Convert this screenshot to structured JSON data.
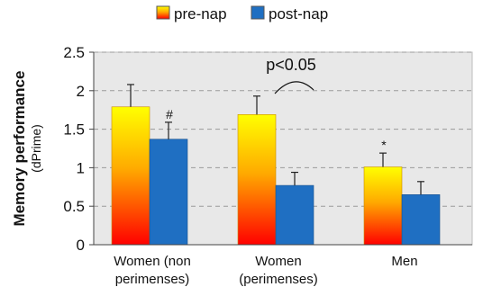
{
  "chart_data": {
    "type": "bar",
    "title": "",
    "ylabel": "Memory performance",
    "ylabel_sub": "(dPrime)",
    "xlabel": "",
    "ylim": [
      0,
      2.5
    ],
    "yticks": [
      "0",
      "0.5",
      "1",
      "1.5",
      "2",
      "2.5"
    ],
    "grid": true,
    "legend_position": "top-center",
    "categories": [
      [
        "Women (non",
        "perimenses)"
      ],
      [
        "Women",
        "(perimenses)"
      ],
      [
        "Men"
      ]
    ],
    "series": [
      {
        "name": "pre-nap",
        "values": [
          1.79,
          1.69,
          1.01
        ],
        "error": [
          0.29,
          0.24,
          0.18
        ],
        "colors": {
          "top": "#ffff00",
          "mid": "#ff9900",
          "bottom": "#ff0000"
        }
      },
      {
        "name": "post-nap",
        "values": [
          1.37,
          0.77,
          0.65
        ],
        "error": [
          0.22,
          0.17,
          0.17
        ],
        "colors": {
          "fill": "#1f6fc2"
        }
      }
    ],
    "annotations": {
      "significance_text": "p<0.05",
      "markers": [
        {
          "text": "#",
          "category": 0,
          "series": 1
        },
        {
          "text": "*",
          "category": 2,
          "series": 0
        }
      ]
    }
  }
}
